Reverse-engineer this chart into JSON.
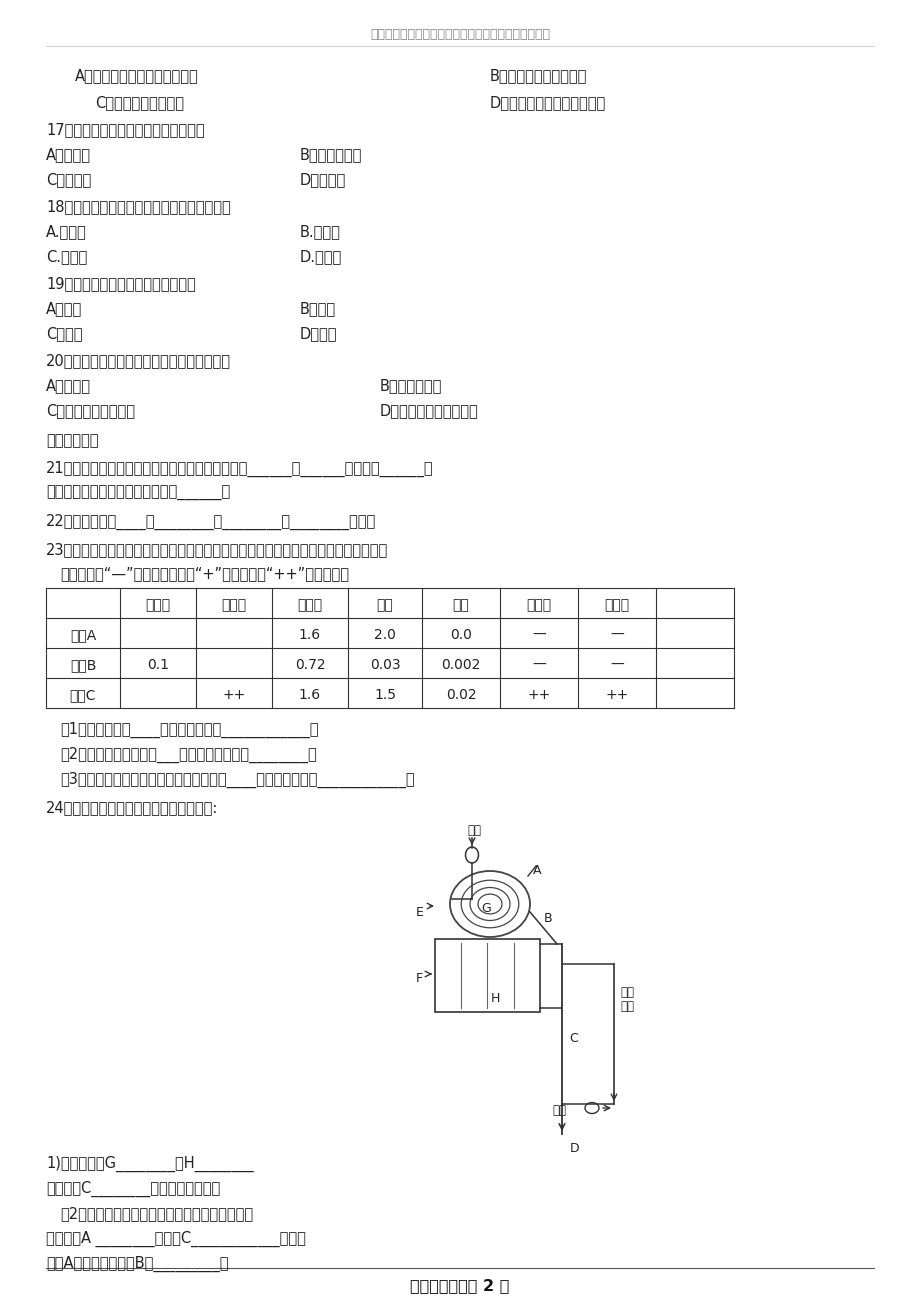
{
  "title_watermark": "精品文档，仅供学习与交流，如有侵权请联系网站删除",
  "bg_color": "#ffffff",
  "footer": "【精品文档】第 2 页",
  "dash": "—",
  "table_data": [
    [
      "样本A",
      "",
      "",
      "1.6",
      "2.0",
      "0.0",
      "—",
      "—"
    ],
    [
      "样本B",
      "0.1",
      "",
      "0.72",
      "0.03",
      "0.002",
      "—",
      "—"
    ],
    [
      "样本C",
      "",
      "++",
      "1.6",
      "1.5",
      "0.02",
      "++",
      "++"
    ]
  ],
  "table_header": [
    "",
    "葡萄糖",
    "蛋白质",
    "无机盐",
    "尿素",
    "尿酸",
    "红细胞",
    "白细胞"
  ]
}
